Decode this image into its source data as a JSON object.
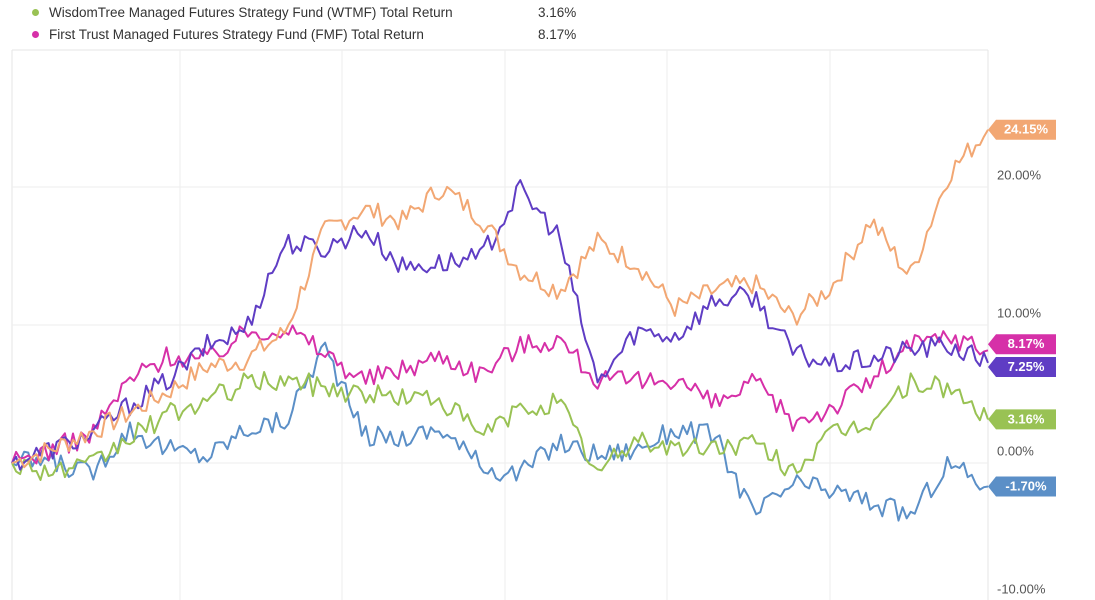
{
  "legend": [
    {
      "label": "WisdomTree Managed Futures Strategy Fund (WTMF) Total Return",
      "value": "3.16%",
      "color": "#99c254"
    },
    {
      "label": "First Trust Managed Futures Strategy Fund (FMF) Total Return",
      "value": "8.17%",
      "color": "#d630a8"
    }
  ],
  "chart_data": {
    "type": "line",
    "title": "",
    "xlabel": "",
    "ylabel": "",
    "ylim": [
      -10,
      30
    ],
    "yticks": [
      {
        "value": 20,
        "label": "20.00%"
      },
      {
        "value": 10,
        "label": "10.00%"
      },
      {
        "value": 0,
        "label": "0.00%"
      },
      {
        "value": -10,
        "label": "-10.00%"
      }
    ],
    "x": [
      0,
      4,
      8,
      12,
      16,
      20,
      24,
      28,
      32,
      36,
      40,
      44,
      48,
      52,
      56,
      60,
      64,
      68,
      72,
      76,
      80,
      84,
      88,
      92,
      96,
      100
    ],
    "series": [
      {
        "name": "Orange series",
        "color": "#f2a773",
        "end_label": "24.15%",
        "values": [
          0,
          1.0,
          2.2,
          3.6,
          5.2,
          7.0,
          7.5,
          9.5,
          16.8,
          18.4,
          17.5,
          20.0,
          17.8,
          14.0,
          12.5,
          16.0,
          14.5,
          11.2,
          12.5,
          13.0,
          10.5,
          12.8,
          17.6,
          13.5,
          21.0,
          24.15
        ]
      },
      {
        "name": "Purple series",
        "color": "#5f3dc4",
        "end_label": "7.25%",
        "values": [
          0,
          1.0,
          2.0,
          4.2,
          6.0,
          8.5,
          9.8,
          16.0,
          15.5,
          17.0,
          14.2,
          14.5,
          14.8,
          19.8,
          16.5,
          5.8,
          9.6,
          9.2,
          11.8,
          12.1,
          8.0,
          7.1,
          7.5,
          8.2,
          8.5,
          7.25
        ]
      },
      {
        "name": "First Trust Managed Futures Strategy Fund (FMF) Total Return",
        "color": "#d630a8",
        "end_label": "8.17%",
        "values": [
          0,
          1.0,
          2.0,
          6.0,
          7.8,
          7.5,
          9.5,
          9.8,
          8.0,
          6.0,
          6.8,
          7.8,
          6.5,
          8.5,
          9.0,
          6.0,
          5.8,
          6.2,
          4.2,
          5.8,
          3.0,
          4.0,
          6.0,
          8.5,
          9.2,
          8.17
        ]
      },
      {
        "name": "WisdomTree Managed Futures Strategy Fund (WTMF) Total Return",
        "color": "#99c254",
        "end_label": "3.16%",
        "values": [
          0,
          -0.6,
          -0.3,
          1.8,
          3.5,
          4.5,
          5.8,
          6.0,
          5.5,
          5.0,
          4.8,
          4.6,
          2.0,
          3.8,
          4.5,
          -0.8,
          1.8,
          1.0,
          1.2,
          1.4,
          -0.5,
          2.0,
          3.0,
          5.8,
          5.5,
          3.16
        ]
      },
      {
        "name": "Blue series",
        "color": "#5b8fc7",
        "end_label": "-1.70%",
        "values": [
          0,
          0.2,
          -0.8,
          2.5,
          1.0,
          0.5,
          2.5,
          3.0,
          8.5,
          2.0,
          1.8,
          2.5,
          -0.2,
          -0.8,
          1.5,
          0.6,
          1.0,
          2.5,
          2.0,
          -3.8,
          -1.5,
          -2.0,
          -2.8,
          -3.8,
          0.0,
          -1.7
        ]
      }
    ]
  }
}
